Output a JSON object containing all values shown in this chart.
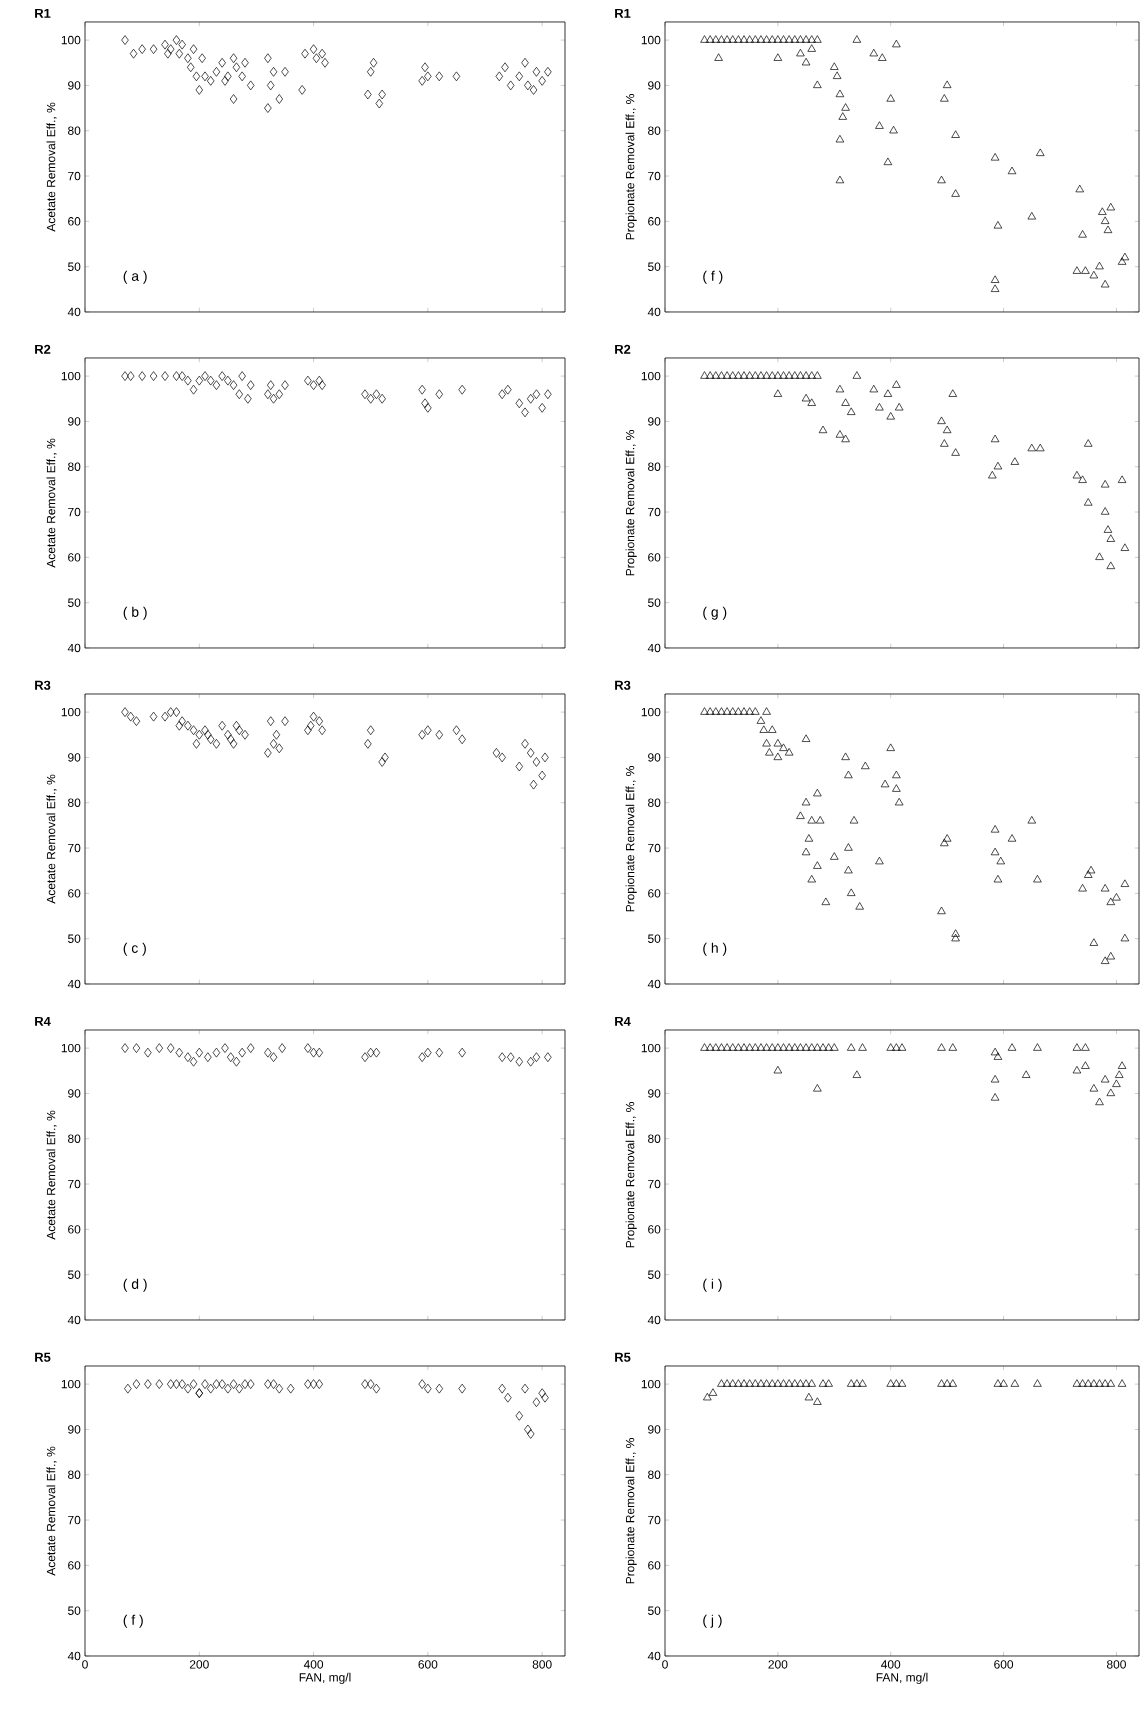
{
  "chart_data": [
    {
      "type": "scatter",
      "title": "R1",
      "ylabel": "Acetate Removal Eff., %",
      "annotations": [
        "( a )"
      ],
      "marker": "diamond",
      "color": "#000000",
      "xlim": [
        0,
        840
      ],
      "ylim": [
        40,
        104
      ],
      "xticks": [
        0,
        200,
        400,
        600,
        800
      ],
      "yticks": [
        40,
        50,
        60,
        70,
        80,
        90,
        100
      ],
      "tick_labels": "y",
      "x": [
        70,
        85,
        100,
        120,
        140,
        145,
        150,
        160,
        165,
        170,
        180,
        185,
        190,
        195,
        200,
        205,
        210,
        220,
        230,
        240,
        245,
        250,
        260,
        260,
        265,
        275,
        280,
        290,
        320,
        320,
        325,
        330,
        340,
        350,
        380,
        385,
        400,
        405,
        415,
        420,
        495,
        500,
        505,
        515,
        520,
        590,
        595,
        600,
        620,
        650,
        725,
        735,
        745,
        760,
        770,
        775,
        785,
        790,
        800,
        810
      ],
      "values": [
        100,
        97,
        98,
        98,
        99,
        97,
        98,
        100,
        97,
        99,
        96,
        94,
        98,
        92,
        89,
        96,
        92,
        91,
        93,
        95,
        91,
        92,
        87,
        96,
        94,
        92,
        95,
        90,
        96,
        85,
        90,
        93,
        87,
        93,
        89,
        97,
        98,
        96,
        97,
        95,
        88,
        93,
        95,
        86,
        88,
        91,
        94,
        92,
        92,
        92,
        92,
        94,
        90,
        92,
        95,
        90,
        89,
        93,
        91,
        93
      ]
    },
    {
      "type": "scatter",
      "title": "R1",
      "ylabel": "Propionate Removal Eff., %",
      "annotations": [
        "( f )"
      ],
      "marker": "triangle",
      "color": "#000000",
      "xlim": [
        0,
        840
      ],
      "ylim": [
        40,
        104
      ],
      "xticks": [
        0,
        200,
        400,
        600,
        800
      ],
      "yticks": [
        40,
        50,
        60,
        70,
        80,
        90,
        100
      ],
      "tick_labels": "y",
      "x": [
        70,
        80,
        90,
        100,
        110,
        120,
        130,
        140,
        150,
        160,
        170,
        180,
        190,
        200,
        210,
        220,
        230,
        240,
        250,
        260,
        270,
        95,
        200,
        240,
        250,
        260,
        270,
        300,
        305,
        310,
        315,
        310,
        310,
        320,
        340,
        370,
        380,
        385,
        395,
        400,
        405,
        410,
        490,
        495,
        500,
        515,
        515,
        585,
        590,
        615,
        650,
        665,
        585,
        585,
        730,
        735,
        740,
        745,
        760,
        770,
        775,
        780,
        780,
        785,
        790,
        810,
        815
      ],
      "values": [
        100,
        100,
        100,
        100,
        100,
        100,
        100,
        100,
        100,
        100,
        100,
        100,
        100,
        100,
        100,
        100,
        100,
        100,
        100,
        100,
        100,
        96,
        96,
        97,
        95,
        98,
        90,
        94,
        92,
        88,
        83,
        78,
        69,
        85,
        100,
        97,
        81,
        96,
        73,
        87,
        80,
        99,
        69,
        87,
        90,
        66,
        79,
        74,
        59,
        71,
        61,
        75,
        45,
        47,
        49,
        67,
        57,
        49,
        48,
        50,
        62,
        46,
        60,
        58,
        63,
        51,
        52
      ]
    },
    {
      "type": "scatter",
      "title": "R2",
      "ylabel": "Acetate Removal Eff., %",
      "annotations": [
        "( b )"
      ],
      "marker": "diamond",
      "color": "#000000",
      "xlim": [
        0,
        840
      ],
      "ylim": [
        40,
        104
      ],
      "xticks": [
        0,
        200,
        400,
        600,
        800
      ],
      "yticks": [
        40,
        50,
        60,
        70,
        80,
        90,
        100
      ],
      "tick_labels": "y",
      "x": [
        70,
        80,
        100,
        120,
        140,
        160,
        170,
        180,
        190,
        200,
        210,
        220,
        230,
        240,
        250,
        260,
        270,
        275,
        285,
        290,
        320,
        325,
        330,
        340,
        350,
        390,
        400,
        410,
        415,
        490,
        500,
        510,
        520,
        590,
        595,
        600,
        620,
        660,
        730,
        740,
        760,
        770,
        780,
        790,
        800,
        810
      ],
      "values": [
        100,
        100,
        100,
        100,
        100,
        100,
        100,
        99,
        97,
        99,
        100,
        99,
        98,
        100,
        99,
        98,
        96,
        100,
        95,
        98,
        96,
        98,
        95,
        96,
        98,
        99,
        98,
        99,
        98,
        96,
        95,
        96,
        95,
        97,
        94,
        93,
        96,
        97,
        96,
        97,
        94,
        92,
        95,
        96,
        93,
        96
      ]
    },
    {
      "type": "scatter",
      "title": "R2",
      "ylabel": "Propionate Removal Eff., %",
      "annotations": [
        "( g )"
      ],
      "marker": "triangle",
      "color": "#000000",
      "xlim": [
        0,
        840
      ],
      "ylim": [
        40,
        104
      ],
      "xticks": [
        0,
        200,
        400,
        600,
        800
      ],
      "yticks": [
        40,
        50,
        60,
        70,
        80,
        90,
        100
      ],
      "tick_labels": "y",
      "x": [
        70,
        80,
        90,
        100,
        110,
        120,
        130,
        140,
        150,
        160,
        170,
        180,
        190,
        200,
        210,
        220,
        230,
        240,
        250,
        260,
        270,
        200,
        250,
        260,
        280,
        310,
        310,
        320,
        320,
        330,
        340,
        370,
        380,
        395,
        400,
        410,
        415,
        490,
        495,
        500,
        510,
        515,
        580,
        585,
        590,
        620,
        650,
        665,
        730,
        740,
        750,
        750,
        770,
        780,
        780,
        785,
        790,
        790,
        810,
        815
      ],
      "values": [
        100,
        100,
        100,
        100,
        100,
        100,
        100,
        100,
        100,
        100,
        100,
        100,
        100,
        100,
        100,
        100,
        100,
        100,
        100,
        100,
        100,
        96,
        95,
        94,
        88,
        97,
        87,
        86,
        94,
        92,
        100,
        97,
        93,
        96,
        91,
        98,
        93,
        90,
        85,
        88,
        96,
        83,
        78,
        86,
        80,
        81,
        84,
        84,
        78,
        77,
        85,
        72,
        60,
        76,
        70,
        66,
        64,
        58,
        77,
        62
      ]
    },
    {
      "type": "scatter",
      "title": "R3",
      "ylabel": "Acetate Removal Eff., %",
      "annotations": [
        "( c )"
      ],
      "marker": "diamond",
      "color": "#000000",
      "xlim": [
        0,
        840
      ],
      "ylim": [
        40,
        104
      ],
      "xticks": [
        0,
        200,
        400,
        600,
        800
      ],
      "yticks": [
        40,
        50,
        60,
        70,
        80,
        90,
        100
      ],
      "tick_labels": "y",
      "x": [
        70,
        80,
        90,
        120,
        140,
        150,
        160,
        165,
        170,
        180,
        190,
        195,
        200,
        210,
        215,
        220,
        230,
        240,
        250,
        255,
        260,
        265,
        270,
        280,
        320,
        325,
        330,
        335,
        340,
        350,
        390,
        395,
        400,
        410,
        415,
        495,
        500,
        520,
        525,
        590,
        600,
        620,
        650,
        660,
        720,
        730,
        760,
        770,
        780,
        785,
        790,
        800,
        805
      ],
      "values": [
        100,
        99,
        98,
        99,
        99,
        100,
        100,
        97,
        98,
        97,
        96,
        93,
        95,
        96,
        95,
        94,
        93,
        97,
        95,
        94,
        93,
        97,
        96,
        95,
        91,
        98,
        93,
        95,
        92,
        98,
        96,
        97,
        99,
        98,
        96,
        93,
        96,
        89,
        90,
        95,
        96,
        95,
        96,
        94,
        91,
        90,
        88,
        93,
        91,
        84,
        89,
        86,
        90
      ]
    },
    {
      "type": "scatter",
      "title": "R3",
      "ylabel": "Propionate Removal Eff., %",
      "annotations": [
        "( h )"
      ],
      "marker": "triangle",
      "color": "#000000",
      "xlim": [
        0,
        840
      ],
      "ylim": [
        40,
        104
      ],
      "xticks": [
        0,
        200,
        400,
        600,
        800
      ],
      "yticks": [
        40,
        50,
        60,
        70,
        80,
        90,
        100
      ],
      "tick_labels": "y",
      "x": [
        70,
        80,
        90,
        100,
        110,
        120,
        130,
        140,
        150,
        160,
        170,
        180,
        175,
        180,
        185,
        190,
        200,
        200,
        210,
        220,
        250,
        240,
        250,
        250,
        255,
        260,
        260,
        270,
        270,
        275,
        285,
        300,
        320,
        325,
        325,
        325,
        330,
        335,
        345,
        355,
        380,
        390,
        400,
        410,
        410,
        415,
        490,
        495,
        500,
        515,
        515,
        585,
        585,
        590,
        595,
        615,
        650,
        660,
        740,
        750,
        755,
        760,
        780,
        790,
        790,
        800,
        815,
        815,
        780
      ],
      "values": [
        100,
        100,
        100,
        100,
        100,
        100,
        100,
        100,
        100,
        100,
        98,
        100,
        96,
        93,
        91,
        96,
        90,
        93,
        92,
        91,
        94,
        77,
        80,
        69,
        72,
        76,
        63,
        66,
        82,
        76,
        58,
        68,
        90,
        70,
        86,
        65,
        60,
        76,
        57,
        88,
        67,
        84,
        92,
        83,
        86,
        80,
        56,
        71,
        72,
        51,
        50,
        74,
        69,
        63,
        67,
        72,
        76,
        63,
        61,
        64,
        65,
        49,
        61,
        46,
        58,
        59,
        62,
        50,
        45
      ]
    },
    {
      "type": "scatter",
      "title": "R4",
      "ylabel": "Acetate Removal Eff., %",
      "annotations": [
        "( d )"
      ],
      "marker": "diamond",
      "color": "#000000",
      "xlim": [
        0,
        840
      ],
      "ylim": [
        40,
        104
      ],
      "xticks": [
        0,
        200,
        400,
        600,
        800
      ],
      "yticks": [
        40,
        50,
        60,
        70,
        80,
        90,
        100
      ],
      "tick_labels": "y",
      "x": [
        70,
        90,
        110,
        130,
        150,
        165,
        180,
        190,
        200,
        215,
        230,
        245,
        255,
        265,
        275,
        290,
        320,
        330,
        345,
        390,
        400,
        410,
        490,
        500,
        510,
        590,
        600,
        620,
        660,
        730,
        745,
        760,
        780,
        790,
        810
      ],
      "values": [
        100,
        100,
        99,
        100,
        100,
        99,
        98,
        97,
        99,
        98,
        99,
        100,
        98,
        97,
        99,
        100,
        99,
        98,
        100,
        100,
        99,
        99,
        98,
        99,
        99,
        98,
        99,
        99,
        99,
        98,
        98,
        97,
        97,
        98,
        98
      ]
    },
    {
      "type": "scatter",
      "title": "R4",
      "ylabel": "Propionate Removal Eff., %",
      "annotations": [
        "( i )"
      ],
      "marker": "triangle",
      "color": "#000000",
      "xlim": [
        0,
        840
      ],
      "ylim": [
        40,
        104
      ],
      "xticks": [
        0,
        200,
        400,
        600,
        800
      ],
      "yticks": [
        40,
        50,
        60,
        70,
        80,
        90,
        100
      ],
      "tick_labels": "y",
      "x": [
        70,
        80,
        90,
        100,
        110,
        120,
        130,
        140,
        150,
        160,
        170,
        180,
        190,
        200,
        210,
        220,
        230,
        240,
        250,
        260,
        270,
        280,
        290,
        300,
        200,
        270,
        340,
        330,
        350,
        400,
        410,
        420,
        490,
        510,
        585,
        590,
        585,
        585,
        615,
        640,
        660,
        730,
        745,
        760,
        770,
        780,
        790,
        800,
        810,
        805,
        730,
        745
      ],
      "values": [
        100,
        100,
        100,
        100,
        100,
        100,
        100,
        100,
        100,
        100,
        100,
        100,
        100,
        100,
        100,
        100,
        100,
        100,
        100,
        100,
        100,
        100,
        100,
        100,
        95,
        91,
        94,
        100,
        100,
        100,
        100,
        100,
        100,
        100,
        99,
        98,
        93,
        89,
        100,
        94,
        100,
        95,
        96,
        91,
        88,
        93,
        90,
        92,
        96,
        94,
        100,
        100
      ]
    },
    {
      "type": "scatter",
      "title": "R5",
      "xlabel": "FAN, mg/l",
      "ylabel": "Acetate Removal Eff., %",
      "annotations": [
        "( f )"
      ],
      "marker": "diamond",
      "color": "#000000",
      "xlim": [
        0,
        840
      ],
      "ylim": [
        40,
        104
      ],
      "xticks": [
        0,
        200,
        400,
        600,
        800
      ],
      "yticks": [
        40,
        50,
        60,
        70,
        80,
        90,
        100
      ],
      "x": [
        75,
        90,
        110,
        130,
        150,
        160,
        170,
        180,
        190,
        200,
        210,
        220,
        230,
        240,
        250,
        260,
        270,
        280,
        290,
        320,
        330,
        340,
        360,
        390,
        400,
        410,
        490,
        500,
        510,
        590,
        600,
        620,
        660,
        200,
        730,
        740,
        760,
        770,
        775,
        780,
        790,
        800,
        805
      ],
      "values": [
        99,
        100,
        100,
        100,
        100,
        100,
        100,
        99,
        100,
        98,
        100,
        99,
        100,
        100,
        99,
        100,
        99,
        100,
        100,
        100,
        100,
        99,
        99,
        100,
        100,
        100,
        100,
        100,
        99,
        100,
        99,
        99,
        99,
        98,
        99,
        97,
        93,
        99,
        90,
        89,
        96,
        98,
        97
      ]
    },
    {
      "type": "scatter",
      "title": "R5",
      "xlabel": "FAN, mg/l",
      "ylabel": "Propionate Removal Eff., %",
      "annotations": [
        "( j )"
      ],
      "marker": "triangle",
      "color": "#000000",
      "xlim": [
        0,
        840
      ],
      "ylim": [
        40,
        104
      ],
      "xticks": [
        0,
        200,
        400,
        600,
        800
      ],
      "yticks": [
        40,
        50,
        60,
        70,
        80,
        90,
        100
      ],
      "x": [
        100,
        110,
        120,
        130,
        140,
        150,
        160,
        170,
        180,
        190,
        200,
        210,
        220,
        230,
        240,
        250,
        260,
        280,
        290,
        330,
        340,
        350,
        400,
        410,
        420,
        490,
        500,
        510,
        590,
        600,
        620,
        660,
        730,
        740,
        750,
        760,
        770,
        780,
        790,
        810,
        75,
        85,
        255,
        270
      ],
      "values": [
        100,
        100,
        100,
        100,
        100,
        100,
        100,
        100,
        100,
        100,
        100,
        100,
        100,
        100,
        100,
        100,
        100,
        100,
        100,
        100,
        100,
        100,
        100,
        100,
        100,
        100,
        100,
        100,
        100,
        100,
        100,
        100,
        100,
        100,
        100,
        100,
        100,
        100,
        100,
        100,
        97,
        98,
        97,
        96
      ]
    }
  ]
}
